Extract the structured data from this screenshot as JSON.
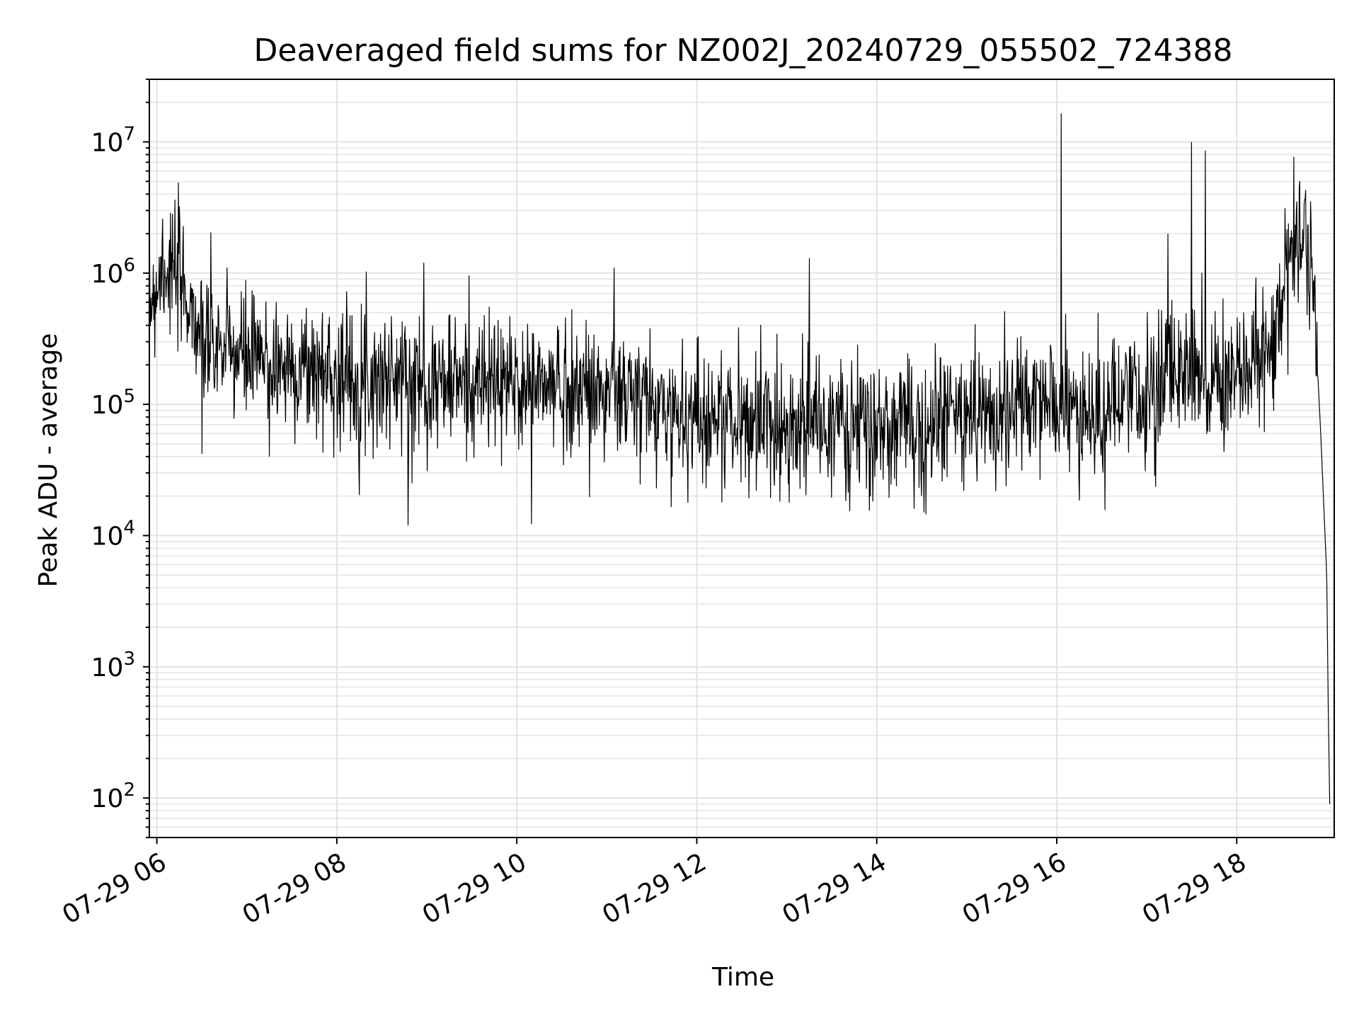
{
  "chart_data": {
    "type": "line",
    "title": "Deaveraged field sums for NZ002J_20240729_055502_724388",
    "xlabel": "Time",
    "ylabel": "Peak ADU - average",
    "yscale": "log",
    "ylim": [
      50,
      30000000
    ],
    "xlim": [
      "2024-07-29 05:55",
      "2024-07-29 19:05"
    ],
    "grid": true,
    "line_color": "#000000",
    "x_ticks": [
      {
        "x": "2024-07-29 06:00",
        "label": "07-29 06"
      },
      {
        "x": "2024-07-29 08:00",
        "label": "07-29 08"
      },
      {
        "x": "2024-07-29 10:00",
        "label": "07-29 10"
      },
      {
        "x": "2024-07-29 12:00",
        "label": "07-29 12"
      },
      {
        "x": "2024-07-29 14:00",
        "label": "07-29 14"
      },
      {
        "x": "2024-07-29 16:00",
        "label": "07-29 16"
      },
      {
        "x": "2024-07-29 18:00",
        "label": "07-29 18"
      }
    ],
    "y_ticks": [
      {
        "value": 100,
        "base": "10",
        "exp": "2"
      },
      {
        "value": 1000,
        "base": "10",
        "exp": "3"
      },
      {
        "value": 10000,
        "base": "10",
        "exp": "4"
      },
      {
        "value": 100000,
        "base": "10",
        "exp": "5"
      },
      {
        "value": 1000000,
        "base": "10",
        "exp": "6"
      },
      {
        "value": 10000000,
        "base": "10",
        "exp": "7"
      }
    ],
    "series_profile": [
      {
        "x": "2024-07-29 05:55",
        "y": 600000
      },
      {
        "x": "2024-07-29 06:05",
        "y": 1200000
      },
      {
        "x": "2024-07-29 06:20",
        "y": 700000
      },
      {
        "x": "2024-07-29 06:30",
        "y": 300000
      },
      {
        "x": "2024-07-29 07:00",
        "y": 220000
      },
      {
        "x": "2024-07-29 08:00",
        "y": 170000
      },
      {
        "x": "2024-07-29 09:00",
        "y": 150000
      },
      {
        "x": "2024-07-29 10:00",
        "y": 140000
      },
      {
        "x": "2024-07-29 11:00",
        "y": 130000
      },
      {
        "x": "2024-07-29 11:40",
        "y": 90000
      },
      {
        "x": "2024-07-29 12:30",
        "y": 75000
      },
      {
        "x": "2024-07-29 13:30",
        "y": 70000
      },
      {
        "x": "2024-07-29 14:00",
        "y": 60000
      },
      {
        "x": "2024-07-29 15:00",
        "y": 85000
      },
      {
        "x": "2024-07-29 16:00",
        "y": 100000
      },
      {
        "x": "2024-07-29 16:30",
        "y": 80000
      },
      {
        "x": "2024-07-29 17:00",
        "y": 120000
      },
      {
        "x": "2024-07-29 17:30",
        "y": 220000
      },
      {
        "x": "2024-07-29 18:00",
        "y": 140000
      },
      {
        "x": "2024-07-29 18:20",
        "y": 250000
      },
      {
        "x": "2024-07-29 18:40",
        "y": 1700000
      },
      {
        "x": "2024-07-29 18:45",
        "y": 2000000
      },
      {
        "x": "2024-07-29 18:52",
        "y": 500000
      },
      {
        "x": "2024-07-29 18:56",
        "y": 60000
      },
      {
        "x": "2024-07-29 19:00",
        "y": 5000
      },
      {
        "x": "2024-07-29 19:01",
        "y": 500
      },
      {
        "x": "2024-07-29 19:02",
        "y": 90
      }
    ],
    "spikes": [
      {
        "x": "2024-07-29 06:04",
        "y": 2600000
      },
      {
        "x": "2024-07-29 08:58",
        "y": 1200000
      },
      {
        "x": "2024-07-29 11:05",
        "y": 1100000
      },
      {
        "x": "2024-07-29 13:15",
        "y": 1300000
      },
      {
        "x": "2024-07-29 16:03",
        "y": 16500000
      },
      {
        "x": "2024-07-29 17:14",
        "y": 2000000
      },
      {
        "x": "2024-07-29 17:30",
        "y": 10000000
      },
      {
        "x": "2024-07-29 17:39",
        "y": 8600000
      },
      {
        "x": "2024-07-29 18:46",
        "y": 4300000
      }
    ],
    "dips": [
      {
        "x": "2024-07-29 06:30",
        "y": 42000
      },
      {
        "x": "2024-07-29 07:15",
        "y": 40000
      },
      {
        "x": "2024-07-29 08:50",
        "y": 25000
      },
      {
        "x": "2024-07-29 11:43",
        "y": 16500
      },
      {
        "x": "2024-07-29 13:55",
        "y": 15500
      },
      {
        "x": "2024-07-29 14:25",
        "y": 16000
      },
      {
        "x": "2024-07-29 16:15",
        "y": 18500
      }
    ]
  }
}
